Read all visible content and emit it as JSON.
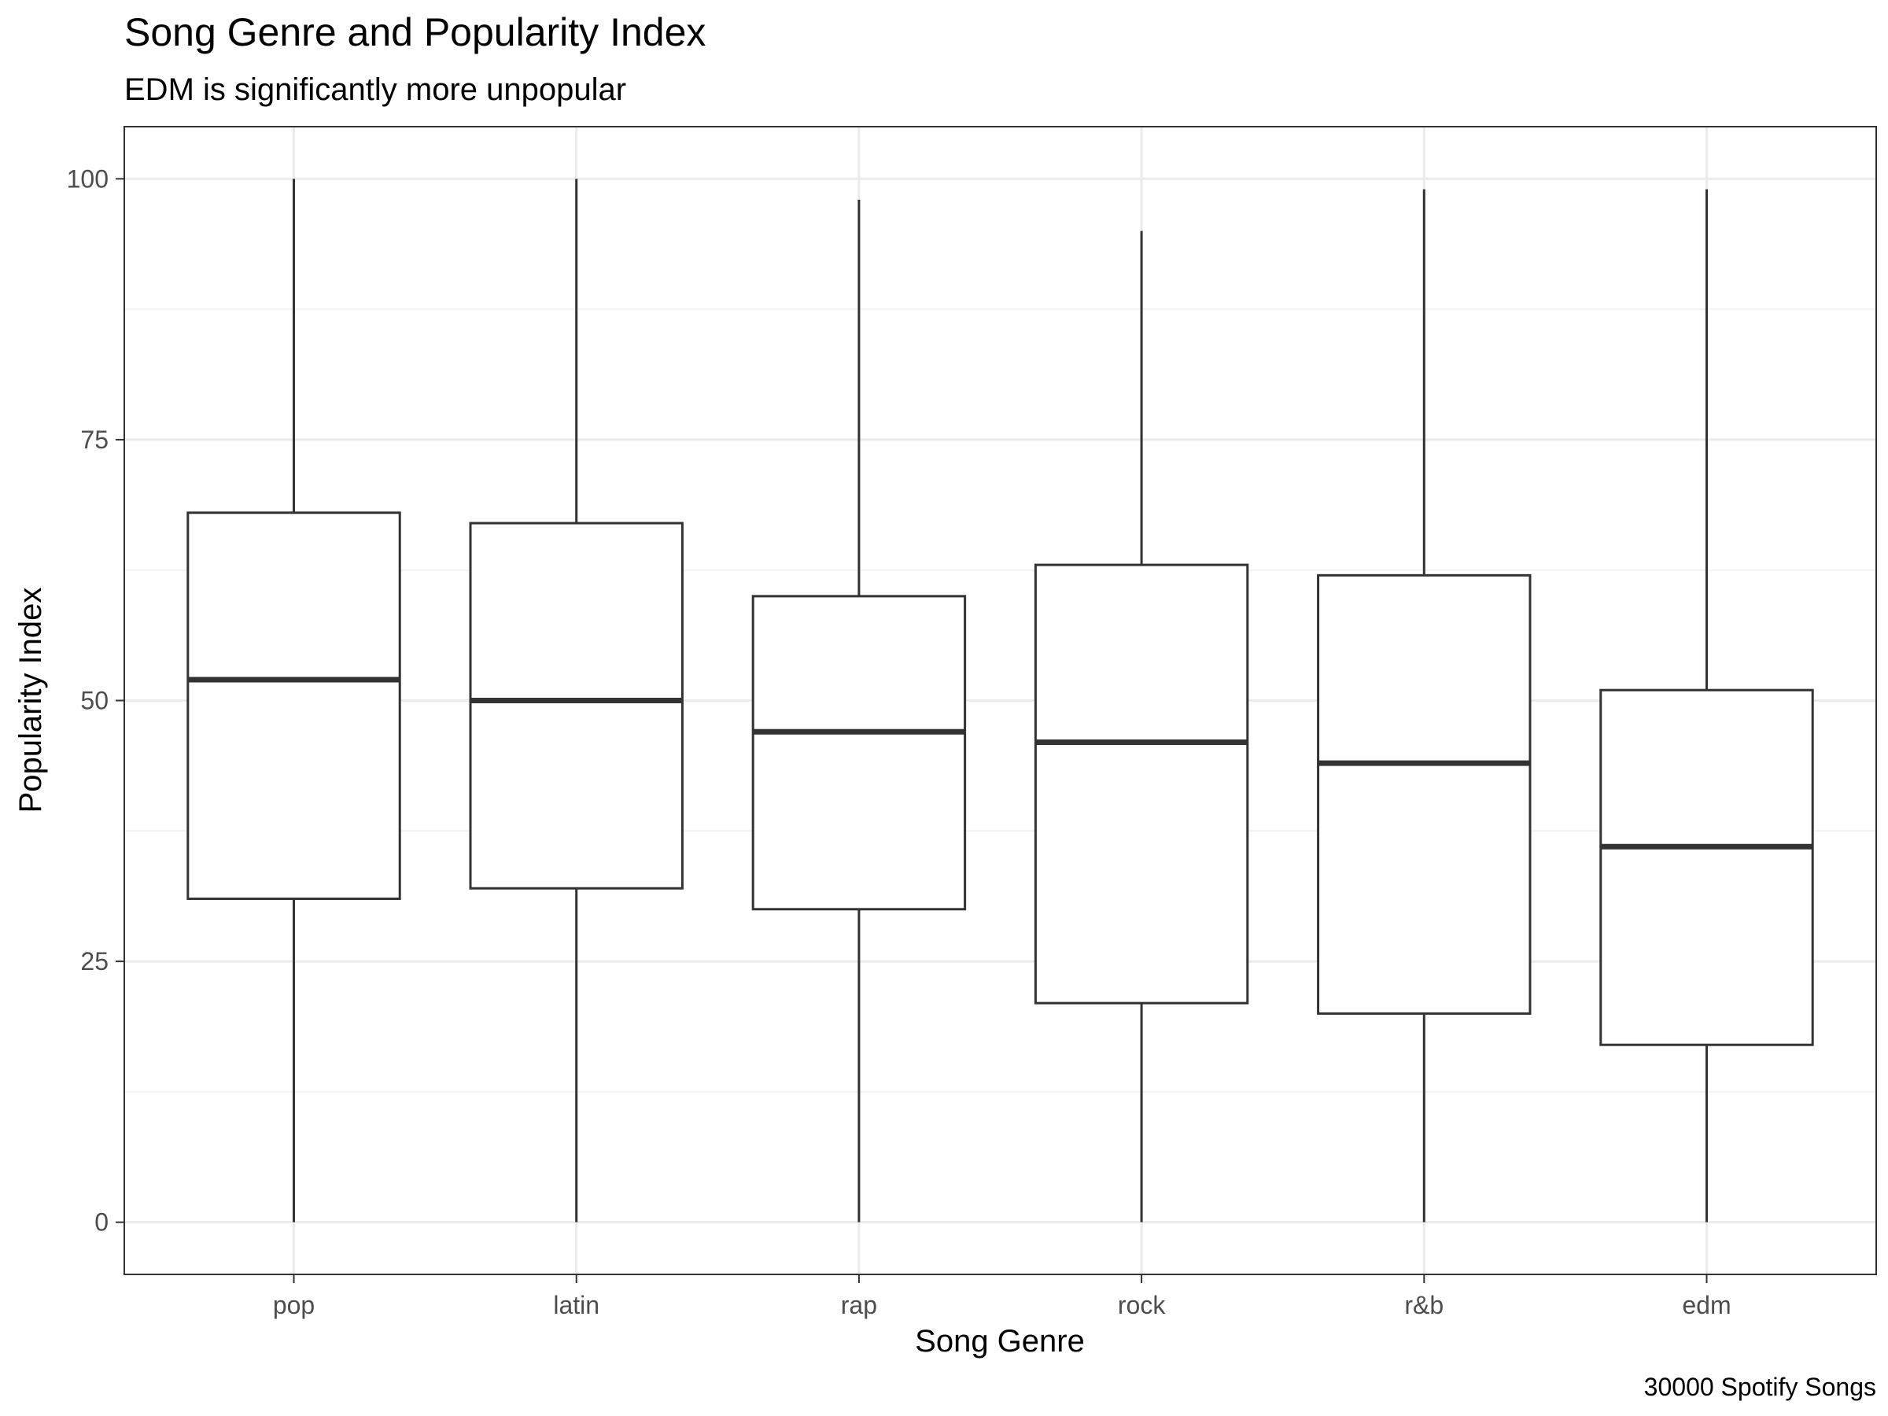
{
  "chart_data": {
    "type": "boxplot",
    "title": "Song Genre and Popularity Index",
    "subtitle": "EDM is significantly more unpopular",
    "caption": "30000 Spotify Songs",
    "xlabel": "Song Genre",
    "ylabel": "Popularity Index",
    "categories": [
      "pop",
      "latin",
      "rap",
      "rock",
      "r&b",
      "edm"
    ],
    "boxes": [
      {
        "category": "pop",
        "min": 0,
        "q1": 31,
        "median": 52,
        "q3": 68,
        "max": 100
      },
      {
        "category": "latin",
        "min": 0,
        "q1": 32,
        "median": 50,
        "q3": 67,
        "max": 100
      },
      {
        "category": "rap",
        "min": 0,
        "q1": 30,
        "median": 47,
        "q3": 60,
        "max": 98
      },
      {
        "category": "rock",
        "min": 0,
        "q1": 21,
        "median": 46,
        "q3": 63,
        "max": 95
      },
      {
        "category": "r&b",
        "min": 0,
        "q1": 20,
        "median": 44,
        "q3": 62,
        "max": 99
      },
      {
        "category": "edm",
        "min": 0,
        "q1": 17,
        "median": 36,
        "q3": 51,
        "max": 99
      }
    ],
    "ylim": [
      -5,
      105
    ],
    "yticks": [
      0,
      25,
      50,
      75,
      100
    ],
    "ytick_labels": [
      "0",
      "25",
      "50",
      "75",
      "100"
    ],
    "grid": true,
    "colors": {
      "box_stroke": "#333333",
      "box_fill": "#ffffff",
      "grid_major": "#ebebeb",
      "grid_minor": "#f2f2f2",
      "panel_border": "#333333",
      "tick_text": "#4d4d4d",
      "title_text": "#000000"
    }
  }
}
